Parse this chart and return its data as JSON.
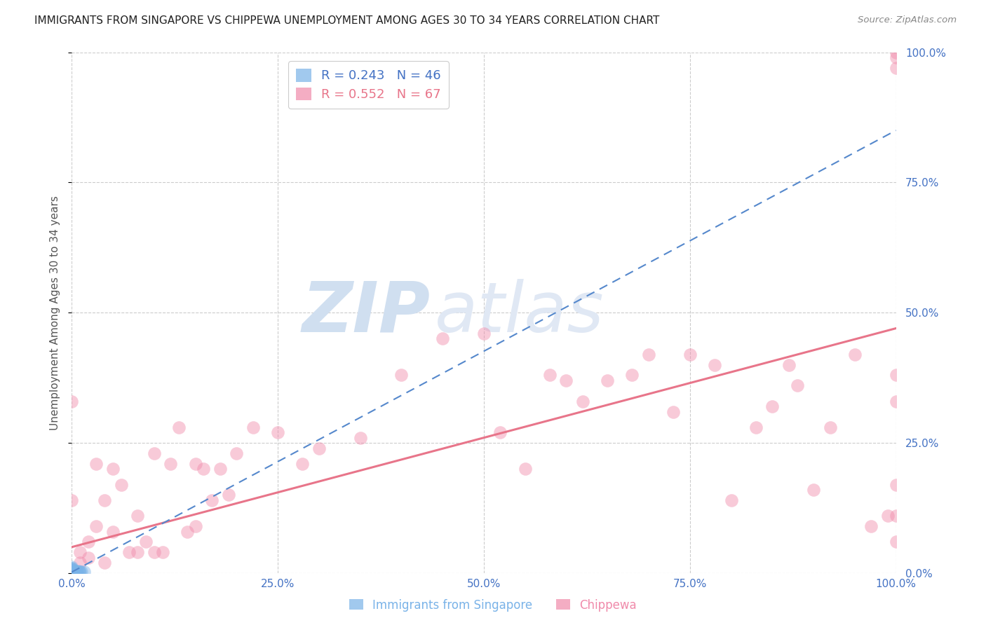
{
  "title": "IMMIGRANTS FROM SINGAPORE VS CHIPPEWA UNEMPLOYMENT AMONG AGES 30 TO 34 YEARS CORRELATION CHART",
  "source": "Source: ZipAtlas.com",
  "ylabel": "Unemployment Among Ages 30 to 34 years",
  "xlim": [
    0,
    1.0
  ],
  "ylim": [
    0,
    1.0
  ],
  "xtick_labels": [
    "0.0%",
    "25.0%",
    "50.0%",
    "75.0%",
    "100.0%"
  ],
  "xtick_vals": [
    0.0,
    0.25,
    0.5,
    0.75,
    1.0
  ],
  "ytick_vals": [
    0.0,
    0.25,
    0.5,
    0.75,
    1.0
  ],
  "right_ytick_labels": [
    "0.0%",
    "25.0%",
    "50.0%",
    "75.0%",
    "100.0%"
  ],
  "right_ytick_vals": [
    0.0,
    0.25,
    0.5,
    0.75,
    1.0
  ],
  "watermark_part1": "ZIP",
  "watermark_part2": "atlas",
  "legend_title_singapore": "Immigrants from Singapore",
  "legend_title_chippewa": "Chippewa",
  "singapore_color": "#7ab3e8",
  "chippewa_color": "#f08aaa",
  "title_color": "#222222",
  "tick_color_x": "#aaaaaa",
  "tick_color_right": "#4472c4",
  "grid_color": "#cccccc",
  "background_color": "#ffffff",
  "singapore_x": [
    0.0,
    0.0,
    0.0,
    0.0,
    0.0,
    0.0,
    0.0,
    0.0,
    0.0,
    0.0,
    0.0,
    0.0,
    0.0,
    0.0,
    0.0,
    0.0,
    0.0,
    0.0,
    0.0,
    0.0,
    0.0,
    0.0,
    0.0,
    0.0,
    0.0,
    0.0,
    0.0,
    0.0,
    0.001,
    0.001,
    0.002,
    0.002,
    0.003,
    0.003,
    0.003,
    0.004,
    0.004,
    0.005,
    0.005,
    0.006,
    0.007,
    0.008,
    0.009,
    0.01,
    0.012,
    0.015
  ],
  "singapore_y": [
    0.0,
    0.0,
    0.0,
    0.0,
    0.0,
    0.0,
    0.0,
    0.0,
    0.0,
    0.0,
    0.0,
    0.0,
    0.0,
    0.0,
    0.0,
    0.002,
    0.002,
    0.003,
    0.004,
    0.004,
    0.005,
    0.005,
    0.006,
    0.007,
    0.008,
    0.009,
    0.01,
    0.012,
    0.0,
    0.001,
    0.001,
    0.003,
    0.0,
    0.002,
    0.003,
    0.001,
    0.002,
    0.003,
    0.004,
    0.002,
    0.003,
    0.004,
    0.002,
    0.003,
    0.002,
    0.003
  ],
  "singapore_line_x": [
    0.0,
    1.0
  ],
  "singapore_line_y": [
    0.002,
    0.85
  ],
  "singapore_line_color": "#5588cc",
  "singapore_line_style": "--",
  "chippewa_x": [
    0.0,
    0.0,
    0.01,
    0.01,
    0.02,
    0.02,
    0.03,
    0.03,
    0.04,
    0.04,
    0.05,
    0.05,
    0.06,
    0.07,
    0.08,
    0.08,
    0.09,
    0.1,
    0.1,
    0.11,
    0.12,
    0.13,
    0.14,
    0.15,
    0.15,
    0.16,
    0.17,
    0.18,
    0.19,
    0.2,
    0.22,
    0.25,
    0.28,
    0.3,
    0.35,
    0.4,
    0.45,
    0.5,
    0.52,
    0.55,
    0.58,
    0.6,
    0.62,
    0.65,
    0.68,
    0.7,
    0.73,
    0.75,
    0.78,
    0.8,
    0.83,
    0.85,
    0.87,
    0.88,
    0.9,
    0.92,
    0.95,
    0.97,
    0.99,
    1.0,
    1.0,
    1.0,
    1.0,
    1.0,
    1.0,
    1.0,
    1.0
  ],
  "chippewa_y": [
    0.33,
    0.14,
    0.04,
    0.02,
    0.06,
    0.03,
    0.21,
    0.09,
    0.14,
    0.02,
    0.08,
    0.2,
    0.17,
    0.04,
    0.04,
    0.11,
    0.06,
    0.04,
    0.23,
    0.04,
    0.21,
    0.28,
    0.08,
    0.09,
    0.21,
    0.2,
    0.14,
    0.2,
    0.15,
    0.23,
    0.28,
    0.27,
    0.21,
    0.24,
    0.26,
    0.38,
    0.45,
    0.46,
    0.27,
    0.2,
    0.38,
    0.37,
    0.33,
    0.37,
    0.38,
    0.42,
    0.31,
    0.42,
    0.4,
    0.14,
    0.28,
    0.32,
    0.4,
    0.36,
    0.16,
    0.28,
    0.42,
    0.09,
    0.11,
    0.06,
    0.11,
    0.17,
    0.33,
    0.38,
    0.97,
    0.99,
    1.0
  ],
  "chippewa_line_x": [
    0.0,
    1.0
  ],
  "chippewa_line_y": [
    0.05,
    0.47
  ],
  "chippewa_line_color": "#e8758a",
  "chippewa_line_style": "-",
  "marker_size": 10,
  "marker_alpha": 0.45,
  "marker_linewidth": 1.2
}
